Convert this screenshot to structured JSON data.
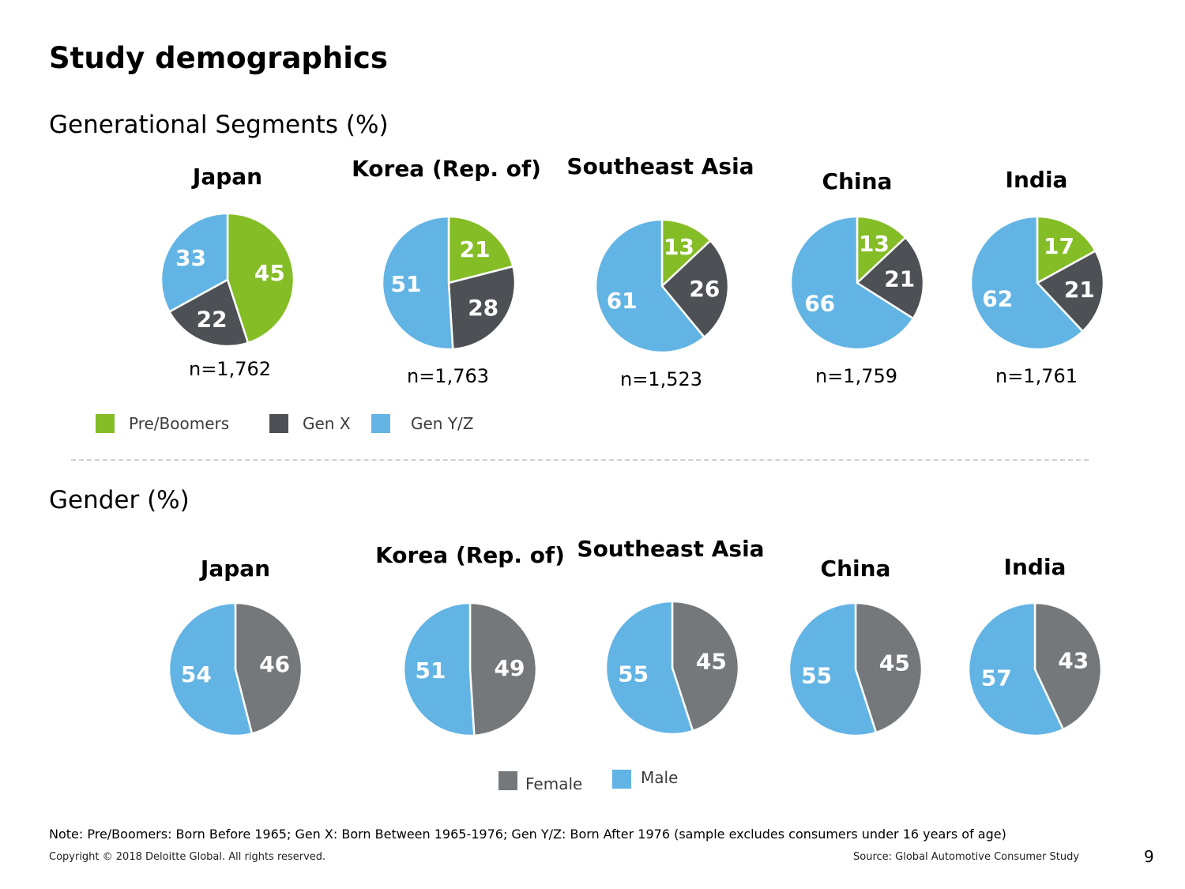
{
  "title": "Study demographics",
  "colors": {
    "pre_boomers": "#84bd26",
    "gen_x": "#4d5054",
    "gen_yz": "#62b4e4",
    "female": "#75787b",
    "male": "#62b4e4"
  },
  "chart_data": [
    {
      "type": "pie",
      "title": "Generational Segments (%)",
      "legend": [
        "Pre/Boomers",
        "Gen X",
        "Gen Y/Z"
      ],
      "legend_placement": "bottom-left",
      "charts": [
        {
          "name": "Japan",
          "values": [
            45,
            22,
            33
          ],
          "n": "n=1,762"
        },
        {
          "name": "Korea (Rep. of)",
          "values": [
            21,
            28,
            51
          ],
          "n": "n=1,763"
        },
        {
          "name": "Southeast Asia",
          "values": [
            13,
            26,
            61
          ],
          "n": "n=1,523"
        },
        {
          "name": "China",
          "values": [
            13,
            21,
            66
          ],
          "n": "n=1,759"
        },
        {
          "name": "India",
          "values": [
            17,
            21,
            62
          ],
          "n": "n=1,761"
        }
      ]
    },
    {
      "type": "pie",
      "title": "Gender (%)",
      "legend": [
        "Female",
        "Male"
      ],
      "legend_placement": "bottom-center",
      "charts": [
        {
          "name": "Japan",
          "values": [
            46,
            54
          ]
        },
        {
          "name": "Korea (Rep. of)",
          "values": [
            49,
            51
          ]
        },
        {
          "name": "Southeast Asia",
          "values": [
            45,
            55
          ]
        },
        {
          "name": "China",
          "values": [
            45,
            55
          ]
        },
        {
          "name": "India",
          "values": [
            43,
            57
          ]
        }
      ]
    }
  ],
  "footer": {
    "note": "Note: Pre/Boomers: Born Before 1965; Gen X: Born Between 1965-1976; Gen Y/Z: Born After 1976 (sample excludes consumers under 16 years of age)",
    "copyright": "Copyright © 2018 Deloitte Global. All rights reserved.",
    "source_label": "Source:",
    "source_value": "Global Automotive Consumer Study",
    "page_number": "9"
  }
}
